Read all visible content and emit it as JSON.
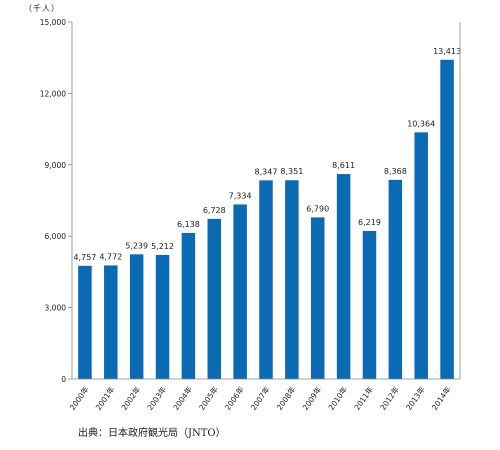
{
  "unit_label": "（千人）",
  "source_note": "出典：日本政府観光局（JNTO）",
  "colors": {
    "bar": "#0a6ab4",
    "axis": "#888888",
    "text": "#222222"
  },
  "chart_data": {
    "type": "bar",
    "title": "",
    "xlabel": "",
    "ylabel": "（千人）",
    "ylim": [
      0,
      15000
    ],
    "yticks": [
      0,
      3000,
      6000,
      9000,
      12000,
      15000
    ],
    "ytick_labels": [
      "0",
      "3,000",
      "6,000",
      "9,000",
      "12,000",
      "15,000"
    ],
    "grid": false,
    "categories": [
      "2000年",
      "2001年",
      "2002年",
      "2003年",
      "2004年",
      "2005年",
      "2006年",
      "2007年",
      "2008年",
      "2009年",
      "2010年",
      "2011年",
      "2012年",
      "2013年",
      "2014年"
    ],
    "values": [
      4757,
      4772,
      5239,
      5212,
      6138,
      6728,
      7334,
      8347,
      8351,
      6790,
      8611,
      6219,
      8368,
      10364,
      13413
    ],
    "value_labels": [
      "4,757",
      "4,772",
      "5,239",
      "5,212",
      "6,138",
      "6,728",
      "7,334",
      "8,347",
      "8,351",
      "6,790",
      "8,611",
      "6,219",
      "8,368",
      "10,364",
      "13,413"
    ]
  }
}
